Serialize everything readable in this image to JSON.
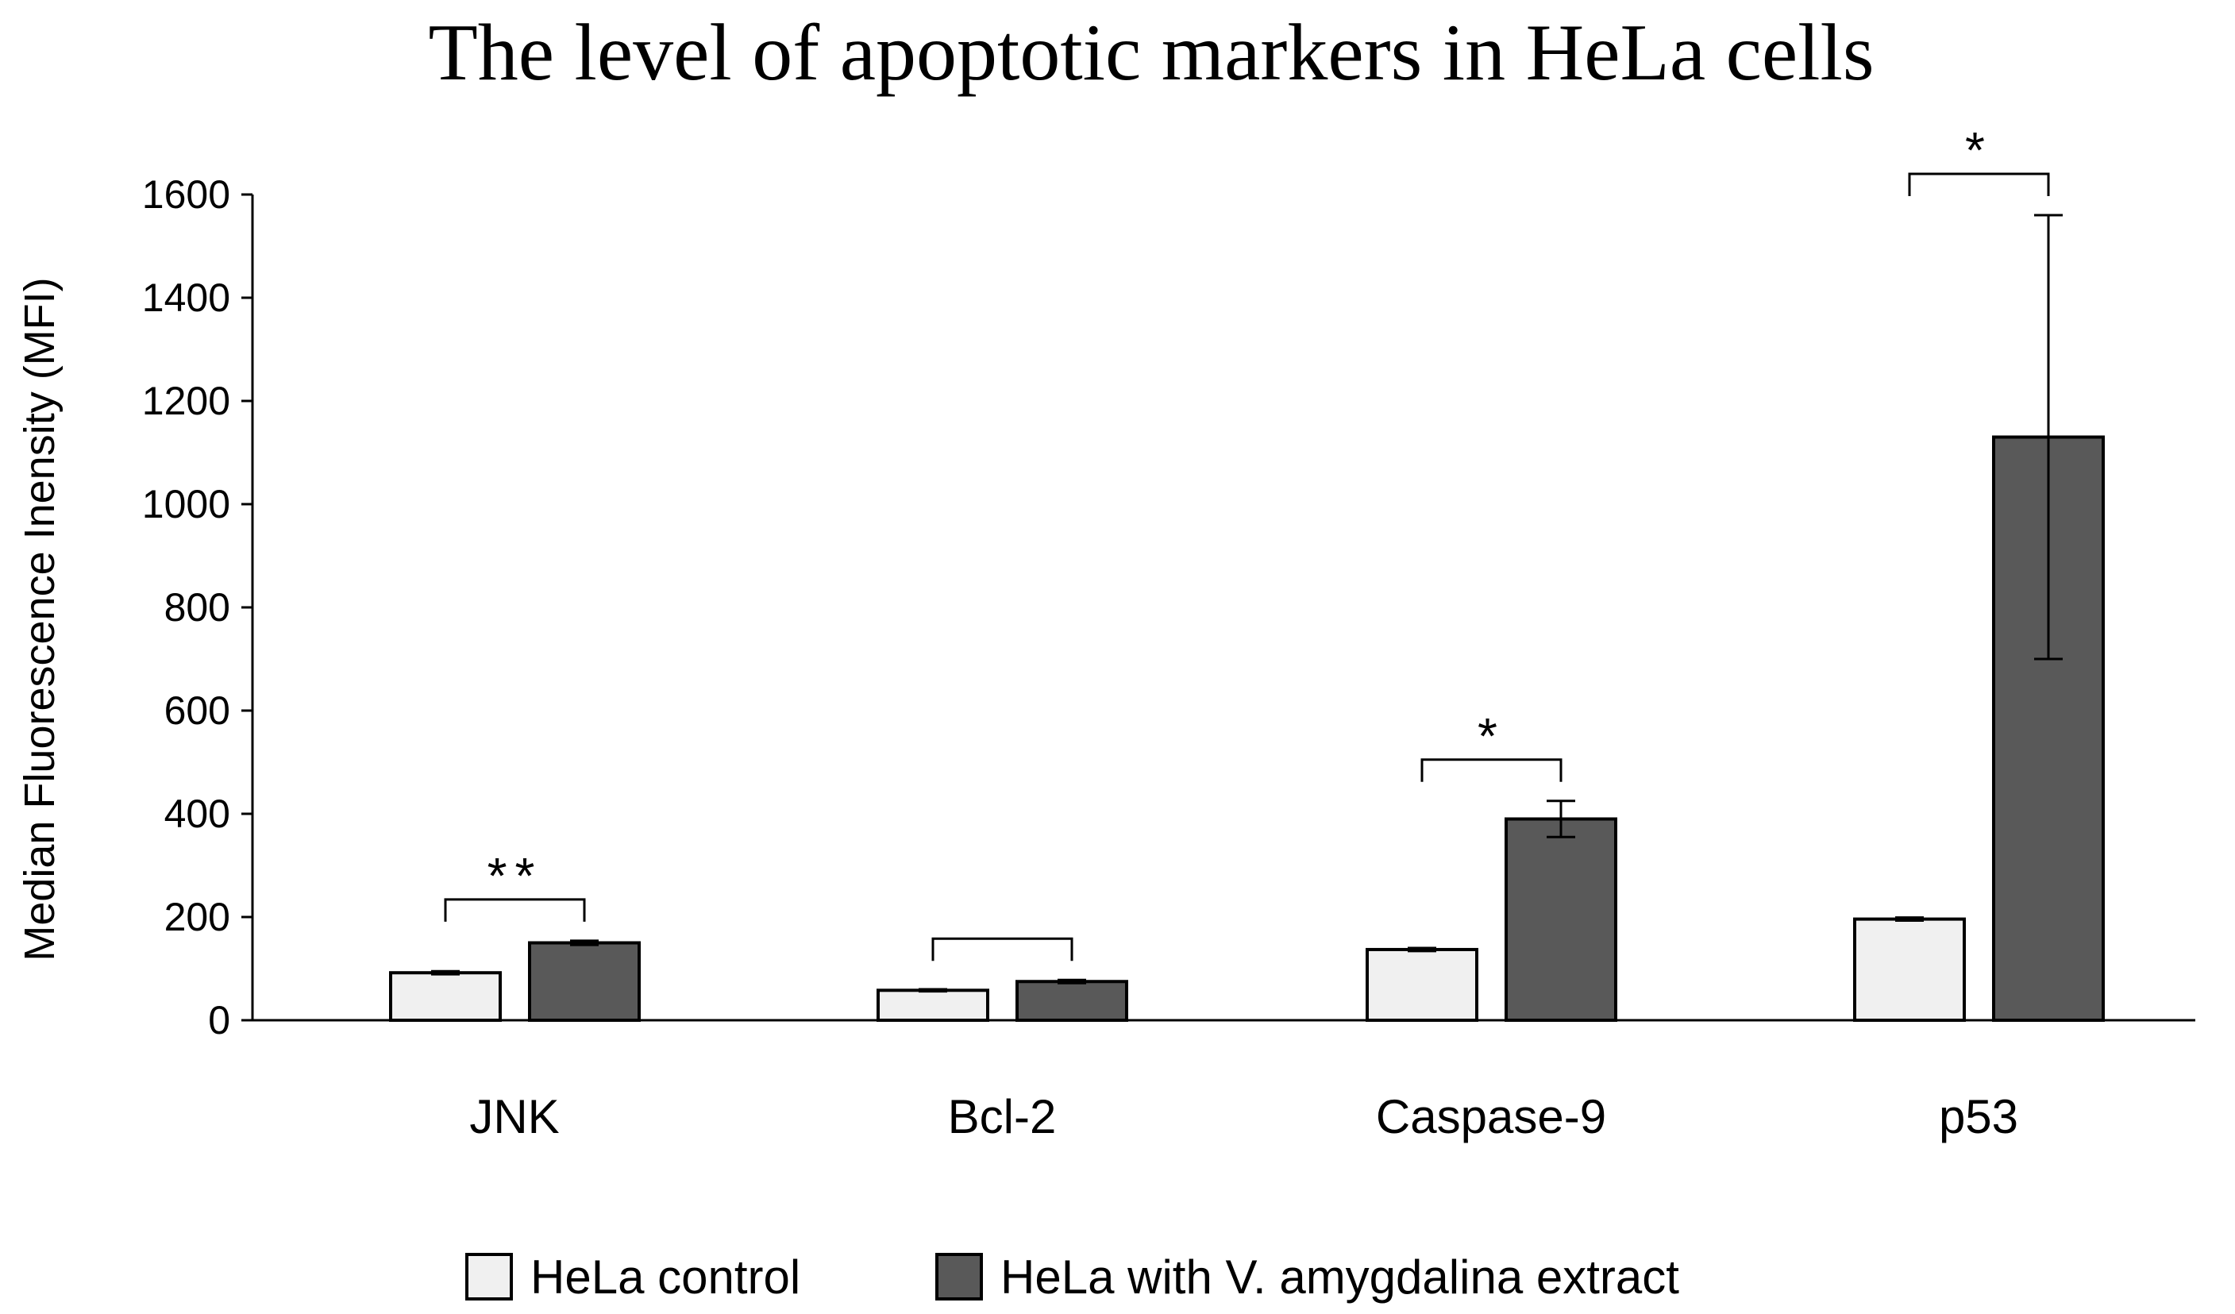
{
  "chart_data": {
    "type": "bar",
    "title": "The level of apoptotic markers in HeLa cells",
    "xlabel": "",
    "ylabel": "Median Fluorescence Inensity (MFI)",
    "ylim": [
      0,
      1600
    ],
    "yticks": [
      "0",
      "200",
      "400",
      "600",
      "800",
      "1000",
      "1200",
      "1400",
      "1600"
    ],
    "grid": false,
    "legend_position": "bottom",
    "categories": [
      "JNK",
      "Bcl-2",
      "Caspase-9",
      "p53"
    ],
    "series": [
      {
        "name": "HeLa control",
        "color": "#f0f0f0",
        "values": [
          92,
          58,
          137,
          196
        ],
        "errors": [
          3,
          2,
          3,
          3
        ]
      },
      {
        "name": "HeLa with V. amygdalina extract",
        "color": "#595959",
        "values": [
          150,
          75,
          390,
          1130
        ],
        "errors": [
          4,
          3,
          35,
          430
        ]
      }
    ],
    "significance": [
      "**",
      "",
      "*",
      "*"
    ]
  }
}
